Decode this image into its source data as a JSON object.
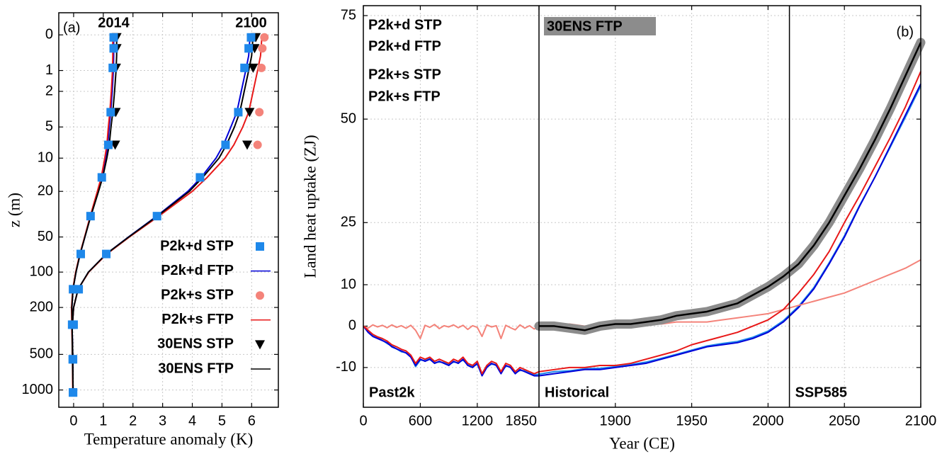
{
  "chart_data": [
    {
      "type": "profile",
      "label": "(a)",
      "xlabel": "Temperature anomaly (K)",
      "ylabel": "z (m)",
      "profile_labels": [
        "2014",
        "2100"
      ],
      "xlim": [
        -0.5,
        6.9
      ],
      "xticks": [
        0,
        1,
        2,
        3,
        4,
        5,
        6
      ],
      "ylim": [
        1400,
        -0.35
      ],
      "yticks": [
        0,
        1,
        2,
        5,
        10,
        20,
        50,
        100,
        200,
        500,
        1000
      ],
      "yscale": "log1p",
      "grid": true,
      "series": [
        {
          "name": "P2k+d STP",
          "color": "#1e88ea",
          "marker": "square",
          "z": [
            0.05,
            0.3,
            0.9,
            3.5,
            7.5,
            15,
            33,
            70,
            140,
            280,
            550,
            1050
          ],
          "values": [
            [
              1.35,
              1.35,
              1.32,
              1.25,
              1.17,
              0.95,
              0.57,
              0.24,
              -0.02,
              -0.05,
              -0.03,
              -0.02
            ],
            [
              5.98,
              5.9,
              5.76,
              5.55,
              5.12,
              4.26,
              2.81,
              1.1,
              0.17,
              0.0,
              -0.02,
              -0.02
            ]
          ]
        },
        {
          "name": "P2k+d FTP",
          "color": "#0000d8",
          "marker": "line",
          "z": [
            0,
            0.5,
            1,
            2,
            3.5,
            5,
            7.5,
            10,
            15,
            20,
            33,
            50,
            70,
            100,
            140,
            200,
            300,
            500,
            1000
          ],
          "values": [
            [
              1.35,
              1.35,
              1.34,
              1.3,
              1.25,
              1.2,
              1.15,
              1.08,
              0.95,
              0.82,
              0.57,
              0.38,
              0.22,
              0.08,
              -0.02,
              -0.06,
              -0.05,
              -0.03,
              -0.02
            ],
            [
              5.95,
              5.9,
              5.8,
              5.65,
              5.5,
              5.3,
              5.05,
              4.8,
              4.3,
              3.85,
              2.8,
              1.85,
              1.1,
              0.5,
              0.15,
              0.0,
              -0.05,
              -0.04,
              -0.02
            ]
          ]
        },
        {
          "name": "P2k+s STP",
          "color": "#f4837a",
          "marker": "circle",
          "z": [
            0.05,
            0.3,
            0.9,
            3.5,
            7.5
          ],
          "values": [
            [
              1.35,
              1.35,
              1.35,
              1.29,
              1.2
            ],
            [
              6.43,
              6.36,
              6.33,
              6.26,
              6.2
            ]
          ]
        },
        {
          "name": "P2k+s FTP",
          "color": "#e81818",
          "marker": "line",
          "z": [
            0,
            0.5,
            1,
            2,
            3.5,
            5,
            7.5,
            10,
            15,
            20,
            33,
            50,
            70,
            100,
            140,
            200,
            300,
            500,
            1000
          ],
          "values": [
            [
              1.32,
              1.32,
              1.31,
              1.27,
              1.22,
              1.17,
              1.12,
              1.05,
              0.93,
              0.8,
              0.56,
              0.37,
              0.21,
              0.07,
              -0.03,
              -0.07,
              -0.06,
              -0.04,
              -0.03
            ],
            [
              6.35,
              6.3,
              6.2,
              6.05,
              5.9,
              5.7,
              5.4,
              5.1,
              4.5,
              4.0,
              2.87,
              1.88,
              1.12,
              0.51,
              0.15,
              0.0,
              -0.05,
              -0.04,
              -0.02
            ]
          ]
        },
        {
          "name": "30ENS STP",
          "color": "#000000",
          "marker": "triangle-down",
          "z": [
            0.05,
            0.3,
            0.9,
            3.5,
            7.5
          ],
          "values": [
            [
              1.45,
              1.45,
              1.43,
              1.42,
              1.4
            ],
            [
              6.14,
              6.1,
              6.05,
              5.93,
              5.85
            ]
          ]
        },
        {
          "name": "30ENS FTP",
          "color": "#000000",
          "marker": "line",
          "z": [
            0,
            0.5,
            1,
            2,
            3.5,
            5,
            7.5,
            10,
            15,
            20,
            33,
            50,
            70,
            100,
            140,
            200,
            300,
            500,
            1000
          ],
          "values": [
            [
              1.45,
              1.45,
              1.43,
              1.38,
              1.32,
              1.26,
              1.2,
              1.12,
              0.98,
              0.84,
              0.58,
              0.38,
              0.22,
              0.08,
              -0.02,
              -0.06,
              -0.05,
              -0.03,
              -0.02
            ],
            [
              6.05,
              6.0,
              5.9,
              5.75,
              5.6,
              5.42,
              5.15,
              4.9,
              4.35,
              3.9,
              2.82,
              1.86,
              1.1,
              0.5,
              0.15,
              0.0,
              -0.05,
              -0.04,
              -0.02
            ]
          ]
        }
      ]
    },
    {
      "type": "line",
      "label": "(b)",
      "xlabel": "Year (CE)",
      "ylabel": "Land heat uptake (ZJ)",
      "xlim": [
        0,
        2100
      ],
      "xsegments": [
        [
          0,
          1850
        ],
        [
          1850,
          2100
        ]
      ],
      "xticks": [
        0,
        600,
        1200,
        1850,
        1900,
        1950,
        2000,
        2050,
        2100
      ],
      "ylim": [
        -19.6,
        77.4
      ],
      "yticks": [
        -10,
        0,
        10,
        25,
        50,
        75
      ],
      "grid": true,
      "dividers": [
        1850,
        2014
      ],
      "periods": [
        "Past2k",
        "Historical",
        "SSP585"
      ],
      "x": [
        0,
        50,
        100,
        150,
        200,
        250,
        300,
        350,
        400,
        450,
        500,
        550,
        600,
        650,
        700,
        750,
        800,
        850,
        900,
        950,
        1000,
        1050,
        1100,
        1150,
        1200,
        1250,
        1300,
        1350,
        1400,
        1450,
        1500,
        1550,
        1600,
        1650,
        1700,
        1750,
        1800,
        1850,
        1860,
        1870,
        1880,
        1890,
        1900,
        1910,
        1920,
        1930,
        1940,
        1950,
        1960,
        1970,
        1980,
        1990,
        2000,
        2010,
        2020,
        2030,
        2040,
        2050,
        2060,
        2070,
        2080,
        2090,
        2100
      ],
      "series": [
        {
          "name": "P2k+d STP",
          "color": "#1e88ea",
          "values": [
            0,
            -1.2,
            -2.3,
            -2.8,
            -3.4,
            -4.2,
            -4.8,
            -5.5,
            -6.2,
            -6.4,
            -7.3,
            -9.8,
            -8.2,
            -8.3,
            -7.8,
            -8.8,
            -8.7,
            -8.8,
            -9.3,
            -8.7,
            -8.8,
            -8.2,
            -9.3,
            -9.8,
            -9.2,
            -11.8,
            -9.8,
            -9.2,
            -9.3,
            -11.2,
            -9.7,
            -9.8,
            -11.3,
            -10.7,
            -10.8,
            -11.3,
            -11.8,
            -11.6,
            -11,
            -10.8,
            -10.3,
            -10.2,
            -9.8,
            -9.3,
            -8.7,
            -7.8,
            -6.8,
            -5.8,
            -4.8,
            -4.2,
            -3.7,
            -2.7,
            -1.2,
            1.3,
            4.8,
            9.3,
            15.3,
            21.8,
            29.2,
            36,
            43.2,
            50.5,
            58
          ]
        },
        {
          "name": "P2k+d FTP",
          "color": "#0000d8",
          "values": [
            0,
            -1.5,
            -2.5,
            -3,
            -3.5,
            -4,
            -5,
            -5.5,
            -6,
            -6.5,
            -7.5,
            -9.5,
            -8,
            -8.5,
            -8,
            -9,
            -8.5,
            -9,
            -9.5,
            -8.5,
            -9,
            -8,
            -9.5,
            -10,
            -9,
            -12,
            -10,
            -9,
            -9.5,
            -11.5,
            -9.5,
            -10,
            -11.5,
            -10.5,
            -11,
            -11.5,
            -12,
            -12,
            -11.5,
            -11,
            -10.5,
            -10.5,
            -10,
            -9.5,
            -9,
            -8,
            -7,
            -6,
            -5,
            -4.5,
            -4,
            -3,
            -1.5,
            1,
            4.5,
            9,
            15,
            21.5,
            29,
            36,
            43.5,
            51,
            58.5
          ]
        },
        {
          "name": "P2k+s STP",
          "color": "#f4837a",
          "values": [
            0,
            -0.5,
            0.3,
            -0.2,
            0.2,
            -0.4,
            0.3,
            -0.3,
            0.1,
            -0.5,
            0.2,
            -1,
            -3,
            0.2,
            -0.3,
            0.4,
            -0.6,
            0.1,
            -0.2,
            0.3,
            -0.4,
            0.2,
            -0.8,
            0.1,
            -0.3,
            -2.5,
            0.3,
            -0.2,
            0.1,
            -3,
            0.2,
            -0.4,
            -0.9,
            0.3,
            -0.5,
            0.1,
            -0.7,
            0,
            0,
            0.5,
            0,
            0,
            0,
            0.5,
            0.5,
            0.5,
            1,
            1,
            1,
            1.5,
            2,
            2.5,
            3,
            4,
            5,
            6,
            7,
            8,
            9.5,
            11,
            12.5,
            14,
            16
          ]
        },
        {
          "name": "P2k+s FTP",
          "color": "#e81818",
          "values": [
            0,
            -1,
            -2,
            -2.6,
            -3,
            -3.6,
            -4.5,
            -5,
            -5.6,
            -6,
            -7,
            -9,
            -7.5,
            -8,
            -7.5,
            -8.5,
            -8,
            -8.5,
            -9,
            -8,
            -8.5,
            -7.5,
            -9,
            -9.5,
            -8.5,
            -11.5,
            -9.5,
            -8.5,
            -9,
            -11,
            -9,
            -9.5,
            -11,
            -10,
            -10.5,
            -11,
            -11.5,
            -11,
            -10.5,
            -10,
            -10,
            -9.5,
            -9.5,
            -9,
            -8,
            -7,
            -6,
            -4.5,
            -3.5,
            -2.5,
            -1.5,
            0,
            1.5,
            4,
            8,
            12.5,
            18,
            25,
            31.5,
            38.5,
            45.5,
            53,
            61.5
          ]
        },
        {
          "name": "30ENS FTP",
          "color": "#000000",
          "band_color": "#8c8c8c",
          "values": [
            null,
            null,
            null,
            null,
            null,
            null,
            null,
            null,
            null,
            null,
            null,
            null,
            null,
            null,
            null,
            null,
            null,
            null,
            null,
            null,
            null,
            null,
            null,
            null,
            null,
            null,
            null,
            null,
            null,
            null,
            null,
            null,
            null,
            null,
            null,
            null,
            null,
            0,
            0,
            -0.5,
            -1,
            0,
            0.5,
            0.5,
            1,
            1.5,
            2.5,
            3,
            3.5,
            4.5,
            5.5,
            7.5,
            9.5,
            12,
            15,
            19.5,
            25,
            31.5,
            38,
            45,
            52.5,
            60.5,
            68.5
          ]
        }
      ]
    }
  ]
}
